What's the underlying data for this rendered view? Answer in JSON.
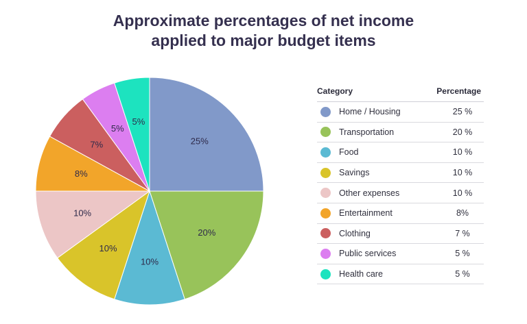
{
  "title_line1": "Approximate percentages of net income",
  "title_line2": "applied to major budget items",
  "legend": {
    "category_header": "Category",
    "percentage_header": "Percentage",
    "rows": [
      {
        "label": "Home / Housing",
        "value": "25 %"
      },
      {
        "label": "Transportation",
        "value": "20 %"
      },
      {
        "label": "Food",
        "value": "10 %"
      },
      {
        "label": "Savings",
        "value": "10 %"
      },
      {
        "label": "Other expenses",
        "value": "10 %"
      },
      {
        "label": "Entertainment",
        "value": "8%"
      },
      {
        "label": "Clothing",
        "value": "7 %"
      },
      {
        "label": "Public services",
        "value": "5 %"
      },
      {
        "label": "Health care",
        "value": "5 %"
      }
    ]
  },
  "chart_data": {
    "type": "pie",
    "categories": [
      "Home / Housing",
      "Transportation",
      "Food",
      "Savings",
      "Other expenses",
      "Entertainment",
      "Clothing",
      "Public services",
      "Health care"
    ],
    "values": [
      25,
      20,
      10,
      10,
      10,
      8,
      7,
      5,
      5
    ],
    "slice_labels": [
      "25%",
      "20%",
      "10%",
      "10%",
      "10%",
      "8%",
      "7%",
      "5%",
      "5%"
    ],
    "colors": [
      "#8199c9",
      "#98c35a",
      "#5bbad3",
      "#d9c42a",
      "#ecc6c6",
      "#f2a52a",
      "#cb5f5f",
      "#dc7ef0",
      "#1de3bf"
    ],
    "start": "12 o'clock",
    "direction": "clockwise"
  }
}
